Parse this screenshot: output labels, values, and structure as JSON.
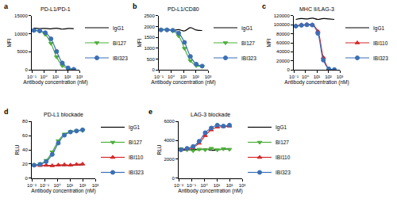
{
  "chart_data": [
    {
      "type": "line",
      "label": "a",
      "title": "PD-L1/PD-1",
      "x_label": "Antibody concentration (nM)",
      "y_label": "MFI",
      "log": "x",
      "grid": false,
      "legend": "right",
      "x": [
        0.15,
        0.46,
        1.37,
        4.1,
        12.3,
        37,
        111,
        333
      ],
      "xlim": [
        0.1,
        1000
      ],
      "xticks": [
        {
          "value": 0.1,
          "label": "10⁻¹"
        },
        {
          "value": 1,
          "label": "10⁰"
        },
        {
          "value": 10,
          "label": "10¹"
        },
        {
          "value": 100,
          "label": "10²"
        },
        {
          "value": 1000,
          "label": "10³"
        }
      ],
      "ylim": [
        0,
        15000
      ],
      "yticks": [
        0,
        5000,
        10000,
        15000
      ],
      "series": [
        {
          "name": "IgG1",
          "color": "#000000",
          "marker": "diamond-open",
          "values": [
            11600,
            11450,
            11500,
            11400,
            11550,
            11300,
            11500,
            11450
          ]
        },
        {
          "name": "BI127",
          "color": "#4daf3a",
          "marker": "triangle-down",
          "values": [
            10930,
            10690,
            9820,
            7340,
            3570,
            1130,
            294,
            70
          ]
        },
        {
          "name": "IBI323",
          "color": "#3b6fb6",
          "marker": "circle",
          "values": [
            10960,
            10830,
            10310,
            8610,
            5100,
            1880,
            520,
            130
          ]
        }
      ]
    },
    {
      "type": "line",
      "label": "b",
      "title": "PD-L1/CD80",
      "x_label": "Antibody concentration (nM)",
      "y_label": "MFI",
      "log": "x",
      "grid": false,
      "legend": "right",
      "x": [
        0.15,
        0.46,
        1.37,
        4.1,
        12.3,
        37,
        111,
        333
      ],
      "xlim": [
        0.1,
        1000
      ],
      "xticks": [
        {
          "value": 0.1,
          "label": "10⁻¹"
        },
        {
          "value": 1,
          "label": "10⁰"
        },
        {
          "value": 10,
          "label": "10¹"
        },
        {
          "value": 100,
          "label": "10²"
        },
        {
          "value": 1000,
          "label": "10³"
        }
      ],
      "ylim": [
        0,
        2500
      ],
      "yticks": [
        0,
        500,
        1000,
        1500,
        2000,
        2500
      ],
      "series": [
        {
          "name": "IgG1",
          "color": "#000000",
          "marker": "diamond-open",
          "values": [
            1850,
            1870,
            1830,
            1860,
            1800,
            1950,
            1840,
            1820
          ]
        },
        {
          "name": "BI127",
          "color": "#4daf3a",
          "marker": "triangle-down",
          "values": [
            1850,
            1845,
            1800,
            1570,
            990,
            420,
            190,
            160
          ]
        },
        {
          "name": "IBI323",
          "color": "#3b6fb6",
          "marker": "circle",
          "values": [
            1850,
            1850,
            1830,
            1700,
            1270,
            620,
            260,
            170
          ]
        }
      ]
    },
    {
      "type": "line",
      "label": "c",
      "title": "MHC II/LAG-3",
      "x_label": "Antibody concentration (nM)",
      "y_label": "MFI",
      "log": "x",
      "grid": false,
      "legend": "right",
      "x": [
        0.15,
        0.46,
        1.37,
        4.1,
        12.3,
        37,
        111,
        333
      ],
      "xlim": [
        0.1,
        1000
      ],
      "xticks": [
        {
          "value": 0.1,
          "label": "10⁻¹"
        },
        {
          "value": 1,
          "label": "10⁰"
        },
        {
          "value": 10,
          "label": "10¹"
        },
        {
          "value": 100,
          "label": "10²"
        },
        {
          "value": 1000,
          "label": "10³"
        }
      ],
      "ylim": [
        0,
        120000
      ],
      "yticks": [
        0,
        20000,
        40000,
        60000,
        80000,
        100000,
        120000
      ],
      "series": [
        {
          "name": "IgG1",
          "color": "#000000",
          "marker": "diamond-open",
          "values": [
            112000,
            114000,
            113000,
            115000,
            112000,
            114000,
            113000,
            112000
          ]
        },
        {
          "name": "IBI110",
          "color": "#d62728",
          "marker": "triangle-up",
          "values": [
            98000,
            100000,
            101000,
            100000,
            85600,
            27300,
            2400,
            500
          ]
        },
        {
          "name": "IBI323",
          "color": "#3b6fb6",
          "marker": "circle",
          "values": [
            97000,
            99000,
            100000,
            99500,
            81000,
            21500,
            1800,
            400
          ]
        }
      ]
    },
    {
      "type": "line",
      "label": "d",
      "title": "PD-L1 blockade",
      "x_label": "Antibody concentration (nM)",
      "y_label": "RLU",
      "log": "x",
      "grid": false,
      "legend": "right",
      "x": [
        0.0152,
        0.0457,
        0.137,
        0.41,
        1.23,
        3.7,
        11.1,
        33.3,
        100
      ],
      "xlim": [
        0.01,
        1000
      ],
      "xticks": [
        {
          "value": 0.01,
          "label": "10⁻²"
        },
        {
          "value": 0.1,
          "label": "10⁻¹"
        },
        {
          "value": 1,
          "label": "10⁰"
        },
        {
          "value": 10,
          "label": "10¹"
        },
        {
          "value": 100,
          "label": "10²"
        },
        {
          "value": 1000,
          "label": "10³"
        }
      ],
      "ylim": [
        0,
        80
      ],
      "yticks": [
        0,
        20,
        40,
        60,
        80
      ],
      "series": [
        {
          "name": "IgG1",
          "color": "#000000",
          "marker": "diamond-open",
          "values": [
            18,
            18.5,
            17.5,
            18,
            18.2,
            17.8,
            18.3,
            18.5,
            19
          ]
        },
        {
          "name": "BI127",
          "color": "#4daf3a",
          "marker": "triangle-down",
          "values": [
            18.6,
            20.1,
            25.1,
            37,
            52.5,
            62,
            65.5,
            66.5,
            67
          ]
        },
        {
          "name": "IBI110",
          "color": "#d62728",
          "marker": "triangle-up",
          "values": [
            18.5,
            18,
            18.3,
            17.7,
            18.6,
            19,
            18.5,
            19.5,
            20
          ]
        },
        {
          "name": "IBI323",
          "color": "#3b6fb6",
          "marker": "circle",
          "values": [
            18.4,
            19.6,
            23.5,
            33.5,
            49.5,
            60.5,
            65,
            66.5,
            68
          ]
        }
      ]
    },
    {
      "type": "line",
      "label": "e",
      "title": "LAG-3 blockade",
      "x_label": "Antibody concentration (nM)",
      "y_label": "RLU",
      "log": "x",
      "grid": false,
      "legend": "right",
      "x": [
        0.0152,
        0.0457,
        0.137,
        0.41,
        1.23,
        3.7,
        11.1,
        33.3,
        100
      ],
      "xlim": [
        0.01,
        1000
      ],
      "xticks": [
        {
          "value": 0.01,
          "label": "10⁻²"
        },
        {
          "value": 0.1,
          "label": "10⁻¹"
        },
        {
          "value": 1,
          "label": "10⁰"
        },
        {
          "value": 10,
          "label": "10¹"
        },
        {
          "value": 100,
          "label": "10²"
        },
        {
          "value": 1000,
          "label": "10³"
        }
      ],
      "ylim": [
        0,
        6000
      ],
      "yticks": [
        0,
        2000,
        4000,
        6000
      ],
      "series": [
        {
          "name": "IgG1",
          "color": "#000000",
          "marker": "diamond-open",
          "values": [
            3000,
            2950,
            3050,
            3000,
            3100,
            2950,
            3000,
            3050,
            3100
          ]
        },
        {
          "name": "BI127",
          "color": "#4daf3a",
          "marker": "triangle-down",
          "values": [
            3100,
            3000,
            2900,
            3050,
            3000,
            3150,
            3000,
            3100,
            3050
          ]
        },
        {
          "name": "IBI110",
          "color": "#d62728",
          "marker": "triangle-up",
          "values": [
            3050,
            3100,
            3250,
            3700,
            4500,
            5100,
            5400,
            5450,
            5500
          ]
        },
        {
          "name": "IBI323",
          "color": "#3b6fb6",
          "marker": "circle",
          "values": [
            3000,
            3150,
            3350,
            3900,
            4800,
            5300,
            5600,
            5500,
            5600
          ]
        }
      ]
    }
  ]
}
